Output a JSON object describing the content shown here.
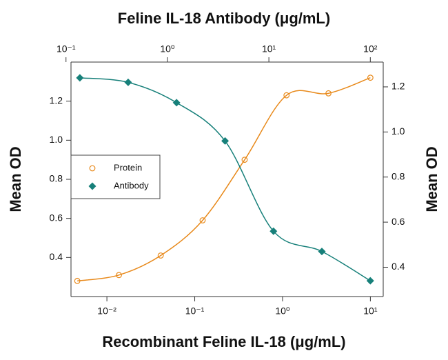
{
  "chart_data": {
    "type": "scatter",
    "x2label": "Feline IL-18 Antibody (μg/mL)",
    "xlabel": "Recombinant Feline IL-18 (μg/mL)",
    "ylabel": "Mean OD",
    "y2label": "Mean OD",
    "xscale": "log",
    "x2scale": "log",
    "xlim": [
      0.0039,
      14
    ],
    "xticks": [
      {
        "value": 0.01,
        "label": "10⁻²"
      },
      {
        "value": 0.1,
        "label": "10⁻¹"
      },
      {
        "value": 1,
        "label": "10⁰"
      },
      {
        "value": 10,
        "label": "10¹"
      }
    ],
    "x2lim": [
      0.112,
      134
    ],
    "x2ticks": [
      {
        "value": 0.1,
        "label": "10⁻¹"
      },
      {
        "value": 1,
        "label": "10⁰"
      },
      {
        "value": 10,
        "label": "10¹"
      },
      {
        "value": 100,
        "label": "10²"
      }
    ],
    "ylim": [
      0.2,
      1.4
    ],
    "yticks": [
      0.4,
      0.6,
      0.8,
      1.0,
      1.2
    ],
    "y2lim": [
      0.27,
      1.31
    ],
    "y2ticks": [
      0.4,
      0.6,
      0.8,
      1.0,
      1.2
    ],
    "legend": "left",
    "series": [
      {
        "name": "Protein",
        "color": "#e8891a",
        "marker": "circle-open",
        "x": [
          0.0046,
          0.0137,
          0.041,
          0.123,
          0.37,
          1.11,
          3.33,
          10
        ],
        "values": [
          0.28,
          0.31,
          0.41,
          0.59,
          0.9,
          1.23,
          1.24,
          1.32
        ]
      },
      {
        "name": "Antibody",
        "color": "#17807a",
        "marker": "diamond",
        "axis": "y2",
        "xaxis": "x2",
        "x": [
          0.137,
          0.41,
          1.23,
          3.7,
          11.1,
          33.3,
          100
        ],
        "values": [
          1.24,
          1.22,
          1.13,
          0.96,
          0.56,
          0.47,
          0.34
        ]
      }
    ]
  }
}
